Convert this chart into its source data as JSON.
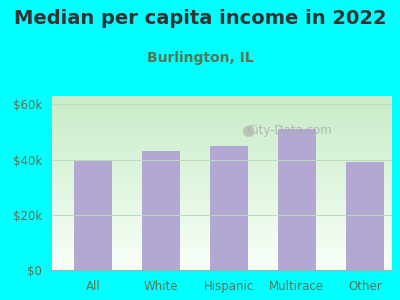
{
  "title": "Median per capita income in 2022",
  "subtitle": "Burlington, IL",
  "categories": [
    "All",
    "White",
    "Hispanic",
    "Multirace",
    "Other"
  ],
  "values": [
    40000,
    43000,
    45000,
    51000,
    39000
  ],
  "bar_color": "#b3a8d4",
  "background_outer": "#00ffff",
  "background_inner": "#e8f5e9",
  "title_color": "#333333",
  "subtitle_color": "#557755",
  "tick_color": "#557755",
  "ytick_labels": [
    "$0",
    "$20k",
    "$40k",
    "$60k"
  ],
  "ytick_values": [
    0,
    20000,
    40000,
    60000
  ],
  "ylim": [
    0,
    63000
  ],
  "watermark": "City-Data.com",
  "title_fontsize": 14,
  "subtitle_fontsize": 10
}
